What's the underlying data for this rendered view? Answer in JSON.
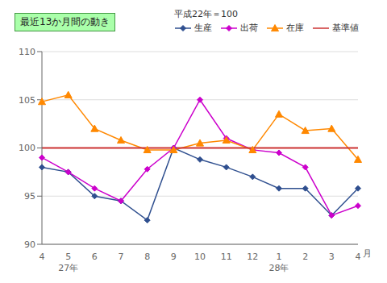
{
  "chart_data": {
    "type": "line",
    "annotation": "最近13か月間の動き",
    "legend_title": "平成22年＝100",
    "xlabel": "月",
    "categories": [
      "4",
      "5",
      "6",
      "7",
      "8",
      "9",
      "10",
      "11",
      "12",
      "1",
      "2",
      "3",
      "4"
    ],
    "category_groups": [
      null,
      "27年",
      null,
      null,
      null,
      null,
      null,
      null,
      null,
      "28年",
      null,
      null,
      null
    ],
    "series": [
      {
        "name": "生産",
        "color": "#2f4f8f",
        "marker": "diamond",
        "line_style": "solid",
        "values": [
          98.0,
          97.5,
          95.0,
          94.5,
          92.5,
          100.0,
          98.8,
          98.0,
          97.0,
          95.8,
          95.8,
          93.0,
          95.8
        ]
      },
      {
        "name": "出荷",
        "color": "#cc00cc",
        "marker": "diamond",
        "line_style": "solid",
        "values": [
          99.0,
          97.5,
          95.8,
          94.5,
          97.8,
          100.0,
          105.0,
          101.0,
          99.8,
          99.5,
          98.0,
          93.0,
          94.0
        ]
      },
      {
        "name": "在庫",
        "color": "#ff8800",
        "marker": "triangle",
        "line_style": "solid",
        "values": [
          104.8,
          105.5,
          102.0,
          100.8,
          99.8,
          99.8,
          100.5,
          100.8,
          99.8,
          103.5,
          101.8,
          102.0,
          98.8
        ]
      },
      {
        "name": "基準値",
        "color": "#cc3333",
        "marker": "none",
        "line_style": "solid",
        "values": [
          100.0,
          100.0,
          100.0,
          100.0,
          100.0,
          100.0,
          100.0,
          100.0,
          100.0,
          100.0,
          100.0,
          100.0,
          100.0
        ]
      }
    ],
    "ylim": [
      90,
      110
    ],
    "yticks": [
      90,
      95,
      100,
      105,
      110
    ],
    "grid": true,
    "legend": "top"
  }
}
